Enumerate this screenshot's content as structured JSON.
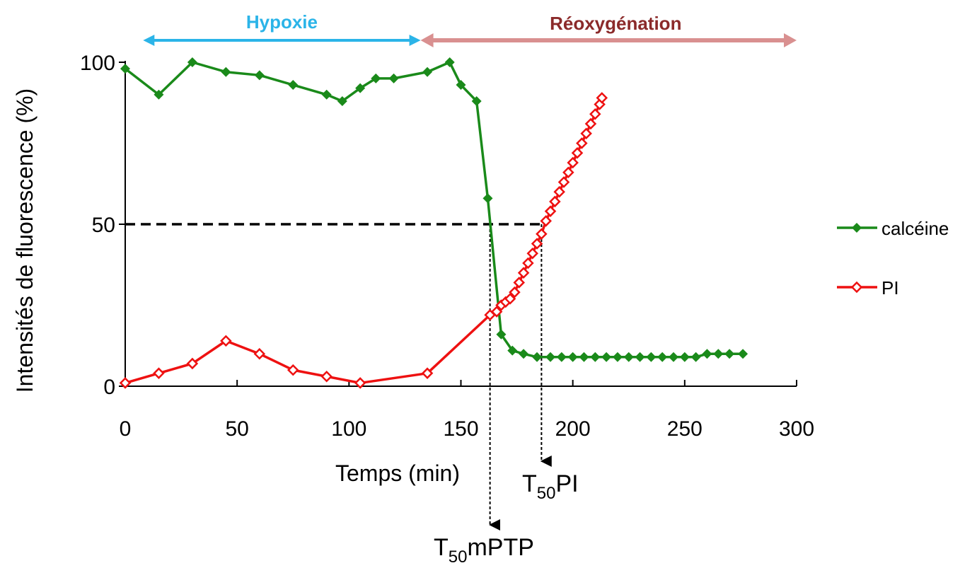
{
  "chart_data": {
    "type": "line",
    "title": "",
    "xlabel": "Temps (min)",
    "ylabel": "Intensités de fluorescence (%)",
    "xlim": [
      0,
      300
    ],
    "ylim": [
      0,
      100
    ],
    "x_ticks": [
      0,
      50,
      100,
      150,
      200,
      250,
      300
    ],
    "y_ticks": [
      0,
      50,
      100
    ],
    "grid": false,
    "legend_position": "right",
    "colors": {
      "calceine": "#1a8a1a",
      "pi": "#ee1111",
      "hypoxie": "#2bb4e8",
      "reox": "#d99090"
    },
    "series": [
      {
        "name": "calcéine",
        "marker": "filled-diamond",
        "points": [
          [
            0,
            98
          ],
          [
            15,
            90
          ],
          [
            30,
            100
          ],
          [
            45,
            97
          ],
          [
            60,
            96
          ],
          [
            75,
            93
          ],
          [
            90,
            90
          ],
          [
            97,
            88
          ],
          [
            105,
            92
          ],
          [
            112,
            95
          ],
          [
            120,
            95
          ],
          [
            135,
            97
          ],
          [
            145,
            100
          ],
          [
            150,
            93
          ],
          [
            157,
            88
          ],
          [
            162,
            58
          ],
          [
            168,
            16
          ],
          [
            173,
            11
          ],
          [
            178,
            10
          ],
          [
            184,
            9
          ],
          [
            190,
            9
          ],
          [
            195,
            9
          ],
          [
            200,
            9
          ],
          [
            205,
            9
          ],
          [
            210,
            9
          ],
          [
            215,
            9
          ],
          [
            220,
            9
          ],
          [
            225,
            9
          ],
          [
            230,
            9
          ],
          [
            235,
            9
          ],
          [
            240,
            9
          ],
          [
            245,
            9
          ],
          [
            250,
            9
          ],
          [
            255,
            9
          ],
          [
            260,
            10
          ],
          [
            265,
            10
          ],
          [
            270,
            10
          ],
          [
            276,
            10
          ]
        ]
      },
      {
        "name": "PI",
        "marker": "open-diamond",
        "points": [
          [
            0,
            1
          ],
          [
            15,
            4
          ],
          [
            30,
            7
          ],
          [
            45,
            14
          ],
          [
            60,
            10
          ],
          [
            75,
            5
          ],
          [
            90,
            3
          ],
          [
            105,
            1
          ],
          [
            135,
            4
          ],
          [
            163,
            22
          ],
          [
            166,
            23
          ],
          [
            168,
            25
          ],
          [
            170,
            26
          ],
          [
            172,
            27
          ],
          [
            174,
            29
          ],
          [
            176,
            32
          ],
          [
            178,
            35
          ],
          [
            180,
            38
          ],
          [
            182,
            41
          ],
          [
            184,
            44
          ],
          [
            186,
            47
          ],
          [
            188,
            51
          ],
          [
            190,
            54
          ],
          [
            192,
            57
          ],
          [
            194,
            60
          ],
          [
            196,
            63
          ],
          [
            198,
            66
          ],
          [
            200,
            69
          ],
          [
            202,
            72
          ],
          [
            204,
            75
          ],
          [
            206,
            78
          ],
          [
            208,
            81
          ],
          [
            210,
            84
          ],
          [
            212,
            87
          ],
          [
            213,
            89
          ]
        ]
      }
    ],
    "annotations": {
      "hypoxie": {
        "label": "Hypoxie",
        "x_range": [
          8,
          132
        ]
      },
      "reoxygenation": {
        "label": "Réoxygénation",
        "x_range": [
          132,
          300
        ]
      },
      "threshold_y": 50,
      "t50_mptp": {
        "main": "T",
        "sub": "50",
        "suffix": "mPTP",
        "x": 163
      },
      "t50_pi": {
        "main": "T",
        "sub": "50",
        "suffix": "PI",
        "x": 186
      }
    }
  }
}
